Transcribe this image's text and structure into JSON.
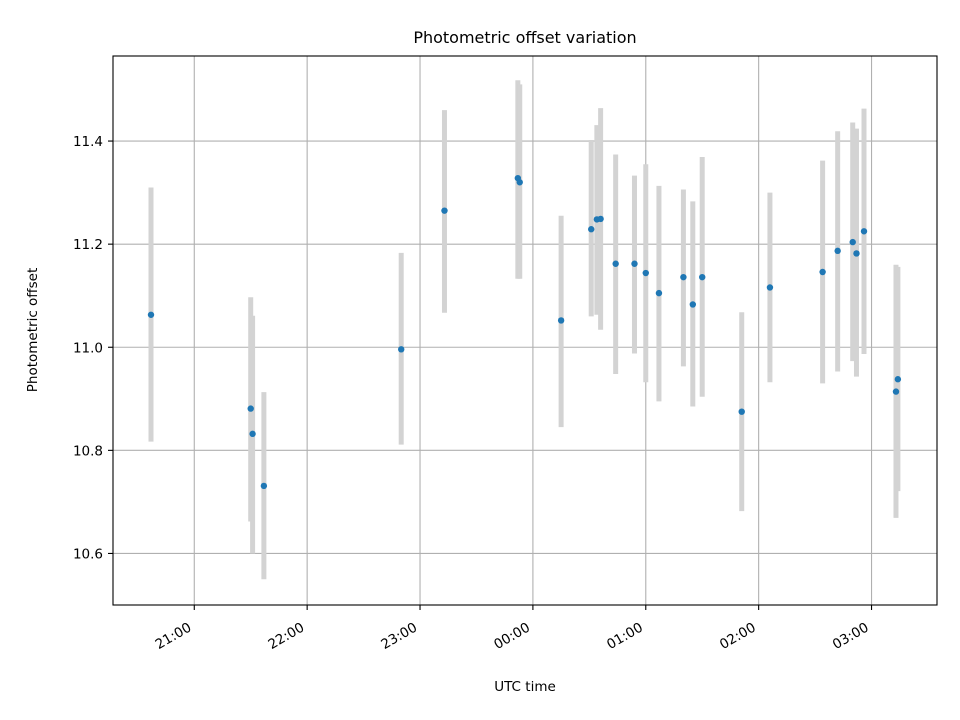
{
  "chart_data": {
    "type": "scatter",
    "title": "Photometric offset variation",
    "xlabel": "UTC time",
    "ylabel": "Photometric offset",
    "x_ticks": [
      "21:00",
      "22:00",
      "23:00",
      "00:00",
      "01:00",
      "02:00",
      "03:00"
    ],
    "x_tick_hours": [
      21,
      22,
      23,
      24,
      25,
      26,
      27
    ],
    "xlim_hours": [
      20.28,
      27.58
    ],
    "y_ticks": [
      "10.6",
      "10.8",
      "11.0",
      "11.2",
      "11.4"
    ],
    "y_tick_values": [
      10.6,
      10.8,
      11.0,
      11.2,
      11.4
    ],
    "ylim": [
      10.5,
      11.565
    ],
    "grid": true,
    "marker_color": "#1f77b4",
    "errorbar_color": "#d3d3d3",
    "points": [
      {
        "t": "20:37",
        "y": 11.063,
        "lo": 10.817,
        "hi": 11.31
      },
      {
        "t": "21:30",
        "y": 10.881,
        "lo": 10.662,
        "hi": 11.097
      },
      {
        "t": "21:31",
        "y": 10.832,
        "lo": 10.6,
        "hi": 11.061
      },
      {
        "t": "21:37",
        "y": 10.731,
        "lo": 10.55,
        "hi": 10.913
      },
      {
        "t": "22:50",
        "y": 10.996,
        "lo": 10.811,
        "hi": 11.183
      },
      {
        "t": "23:13",
        "y": 11.265,
        "lo": 11.067,
        "hi": 11.46
      },
      {
        "t": "23:52",
        "y": 11.328,
        "lo": 11.133,
        "hi": 11.518
      },
      {
        "t": "23:53",
        "y": 11.32,
        "lo": 11.133,
        "hi": 11.51
      },
      {
        "t": "00:15",
        "y": 11.052,
        "lo": 10.845,
        "hi": 11.255
      },
      {
        "t": "00:31",
        "y": 11.229,
        "lo": 11.06,
        "hi": 11.402
      },
      {
        "t": "00:34",
        "y": 11.248,
        "lo": 11.063,
        "hi": 11.431
      },
      {
        "t": "00:36",
        "y": 11.249,
        "lo": 11.034,
        "hi": 11.464
      },
      {
        "t": "00:44",
        "y": 11.162,
        "lo": 10.948,
        "hi": 11.374
      },
      {
        "t": "00:54",
        "y": 11.162,
        "lo": 10.988,
        "hi": 11.333
      },
      {
        "t": "01:00",
        "y": 11.144,
        "lo": 10.932,
        "hi": 11.355
      },
      {
        "t": "01:07",
        "y": 11.105,
        "lo": 10.895,
        "hi": 11.313
      },
      {
        "t": "01:20",
        "y": 11.136,
        "lo": 10.963,
        "hi": 11.306
      },
      {
        "t": "01:25",
        "y": 11.083,
        "lo": 10.885,
        "hi": 11.283
      },
      {
        "t": "01:30",
        "y": 11.136,
        "lo": 10.904,
        "hi": 11.369
      },
      {
        "t": "01:51",
        "y": 10.875,
        "lo": 10.682,
        "hi": 11.068
      },
      {
        "t": "02:06",
        "y": 11.116,
        "lo": 10.932,
        "hi": 11.3
      },
      {
        "t": "02:34",
        "y": 11.146,
        "lo": 10.93,
        "hi": 11.362
      },
      {
        "t": "02:42",
        "y": 11.187,
        "lo": 10.953,
        "hi": 11.419
      },
      {
        "t": "02:50",
        "y": 11.204,
        "lo": 10.973,
        "hi": 11.436
      },
      {
        "t": "02:52",
        "y": 11.182,
        "lo": 10.943,
        "hi": 11.424
      },
      {
        "t": "02:56",
        "y": 11.225,
        "lo": 10.987,
        "hi": 11.463
      },
      {
        "t": "03:13",
        "y": 10.914,
        "lo": 10.669,
        "hi": 11.16
      },
      {
        "t": "03:14",
        "y": 10.938,
        "lo": 10.721,
        "hi": 11.156
      }
    ]
  }
}
